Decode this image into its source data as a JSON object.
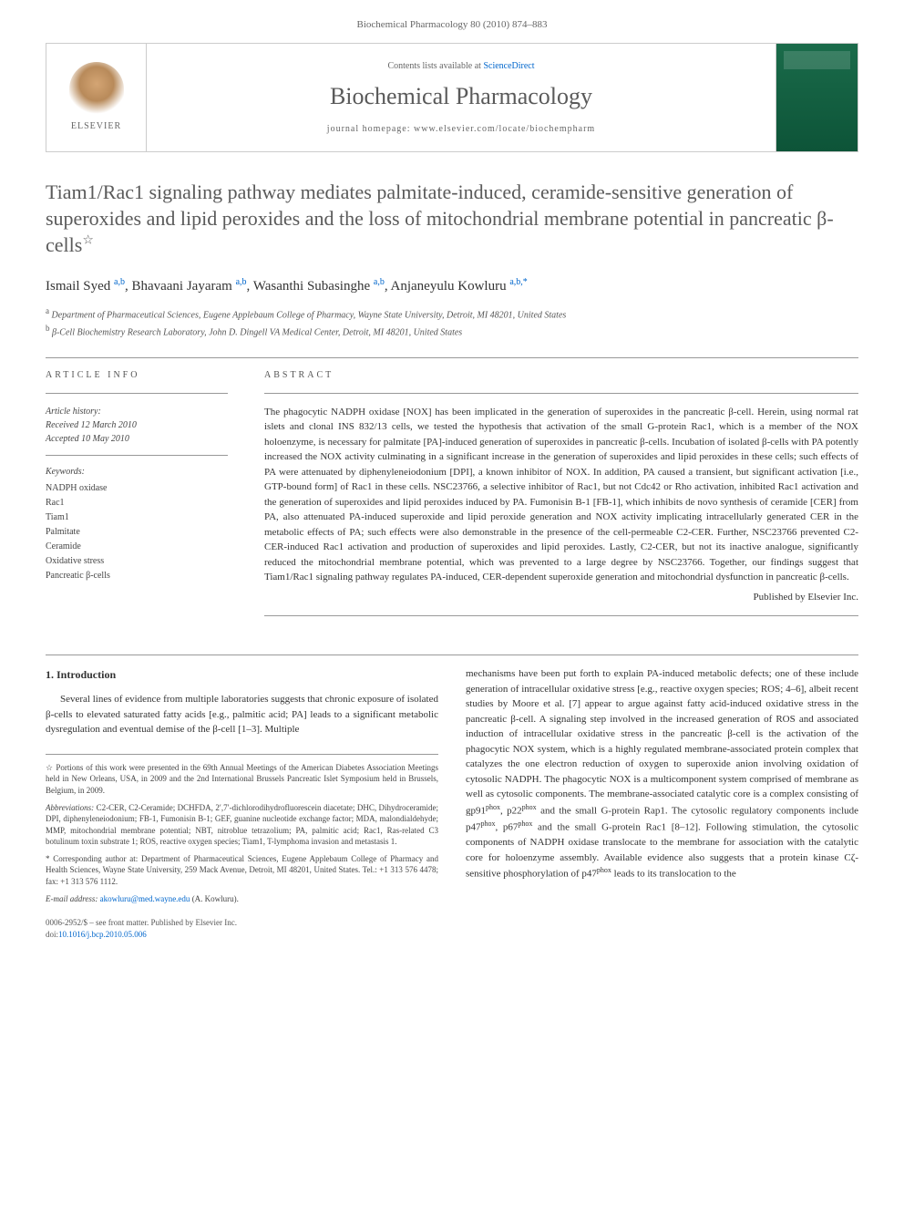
{
  "header": {
    "citation": "Biochemical Pharmacology 80 (2010) 874–883"
  },
  "journalBox": {
    "elsevier": "ELSEVIER",
    "contentsPrefix": "Contents lists available at ",
    "contentsLink": "ScienceDirect",
    "journalName": "Biochemical Pharmacology",
    "homepageLabel": "journal homepage: www.elsevier.com/locate/biochempharm"
  },
  "title": "Tiam1/Rac1 signaling pathway mediates palmitate-induced, ceramide-sensitive generation of superoxides and lipid peroxides and the loss of mitochondrial membrane potential in pancreatic β-cells",
  "titleStar": "☆",
  "authors": [
    {
      "name": "Ismail Syed",
      "sup": "a,b"
    },
    {
      "name": "Bhavaani Jayaram",
      "sup": "a,b"
    },
    {
      "name": "Wasanthi Subasinghe",
      "sup": "a,b"
    },
    {
      "name": "Anjaneyulu Kowluru",
      "sup": "a,b,*"
    }
  ],
  "affiliations": [
    {
      "sup": "a",
      "text": "Department of Pharmaceutical Sciences, Eugene Applebaum College of Pharmacy, Wayne State University, Detroit, MI 48201, United States"
    },
    {
      "sup": "b",
      "text": "β-Cell Biochemistry Research Laboratory, John D. Dingell VA Medical Center, Detroit, MI 48201, United States"
    }
  ],
  "articleInfo": {
    "heading": "ARTICLE INFO",
    "historyLabel": "Article history:",
    "received": "Received 12 March 2010",
    "accepted": "Accepted 10 May 2010",
    "keywordsLabel": "Keywords:",
    "keywords": [
      "NADPH oxidase",
      "Rac1",
      "Tiam1",
      "Palmitate",
      "Ceramide",
      "Oxidative stress",
      "Pancreatic β-cells"
    ]
  },
  "abstract": {
    "heading": "ABSTRACT",
    "text": "The phagocytic NADPH oxidase [NOX] has been implicated in the generation of superoxides in the pancreatic β-cell. Herein, using normal rat islets and clonal INS 832/13 cells, we tested the hypothesis that activation of the small G-protein Rac1, which is a member of the NOX holoenzyme, is necessary for palmitate [PA]-induced generation of superoxides in pancreatic β-cells. Incubation of isolated β-cells with PA potently increased the NOX activity culminating in a significant increase in the generation of superoxides and lipid peroxides in these cells; such effects of PA were attenuated by diphenyleneiodonium [DPI], a known inhibitor of NOX. In addition, PA caused a transient, but significant activation [i.e., GTP-bound form] of Rac1 in these cells. NSC23766, a selective inhibitor of Rac1, but not Cdc42 or Rho activation, inhibited Rac1 activation and the generation of superoxides and lipid peroxides induced by PA. Fumonisin B-1 [FB-1], which inhibits de novo synthesis of ceramide [CER] from PA, also attenuated PA-induced superoxide and lipid peroxide generation and NOX activity implicating intracellularly generated CER in the metabolic effects of PA; such effects were also demonstrable in the presence of the cell-permeable C2-CER. Further, NSC23766 prevented C2-CER-induced Rac1 activation and production of superoxides and lipid peroxides. Lastly, C2-CER, but not its inactive analogue, significantly reduced the mitochondrial membrane potential, which was prevented to a large degree by NSC23766. Together, our findings suggest that Tiam1/Rac1 signaling pathway regulates PA-induced, CER-dependent superoxide generation and mitochondrial dysfunction in pancreatic β-cells.",
    "publishedBy": "Published by Elsevier Inc."
  },
  "introduction": {
    "heading": "1. Introduction",
    "colLeft": "Several lines of evidence from multiple laboratories suggests that chronic exposure of isolated β-cells to elevated saturated fatty acids [e.g., palmitic acid; PA] leads to a significant metabolic dysregulation and eventual demise of the β-cell [1–3]. Multiple",
    "colRightPart1": "mechanisms have been put forth to explain PA-induced metabolic defects; one of these include generation of intracellular oxidative stress [e.g., reactive oxygen species; ROS; 4–6], albeit recent studies by Moore et al. [7] appear to argue against fatty acid-induced oxidative stress in the pancreatic β-cell. A signaling step involved in the increased generation of ROS and associated induction of intracellular oxidative stress in the pancreatic β-cell is the activation of the phagocytic NOX system, which is a highly regulated membrane-associated protein complex that catalyzes the one electron reduction of oxygen to superoxide anion involving oxidation of cytosolic NADPH. The phagocytic NOX is a multicomponent system comprised of membrane as well as cytosolic components. The membrane-associated catalytic core is a complex consisting of gp91",
    "colRightPart2": ", p22",
    "colRightPart3": " and the small G-protein Rap1. The cytosolic regulatory components include p47",
    "colRightPart4": ", p67",
    "colRightPart5": " and the small G-protein Rac1 [8–12]. Following stimulation, the cytosolic components of NADPH oxidase translocate to the membrane for association with the catalytic core for holoenzyme assembly. Available evidence also suggests that a protein kinase Cζ-sensitive phosphorylation of p47",
    "colRightPart6": " leads to its translocation to the",
    "phox": "phox"
  },
  "footnotes": {
    "star": "☆ Portions of this work were presented in the 69th Annual Meetings of the American Diabetes Association Meetings held in New Orleans, USA, in 2009 and the 2nd International Brussels Pancreatic Islet Symposium held in Brussels, Belgium, in 2009.",
    "abbrevLabel": "Abbreviations:",
    "abbrev": " C2-CER, C2-Ceramide; DCHFDA, 2′,7′-dichlorodihydrofluorescein diacetate; DHC, Dihydroceramide; DPI, diphenyleneiodonium; FB-1, Fumonisin B-1; GEF, guanine nucleotide exchange factor; MDA, malondialdehyde; MMP, mitochondrial membrane potential; NBT, nitroblue tetrazolium; PA, palmitic acid; Rac1, Ras-related C3 botulinum toxin substrate 1; ROS, reactive oxygen species; Tiam1, T-lymphoma invasion and metastasis 1.",
    "corr": "* Corresponding author at: Department of Pharmaceutical Sciences, Eugene Applebaum College of Pharmacy and Health Sciences, Wayne State University, 259 Mack Avenue, Detroit, MI 48201, United States. Tel.: +1 313 576 4478; fax: +1 313 576 1112.",
    "emailLabel": "E-mail address:",
    "email": " akowluru@med.wayne.edu",
    "emailSuffix": " (A. Kowluru)."
  },
  "bottomMeta": {
    "copyright": "0006-2952/$ – see front matter. Published by Elsevier Inc.",
    "doiPrefix": "doi:",
    "doi": "10.1016/j.bcp.2010.05.006"
  },
  "refLinks": {
    "r1_3": "[1–3]",
    "r4_6": "4–6",
    "r7": "[7]",
    "r8_12": "[8–12]"
  }
}
